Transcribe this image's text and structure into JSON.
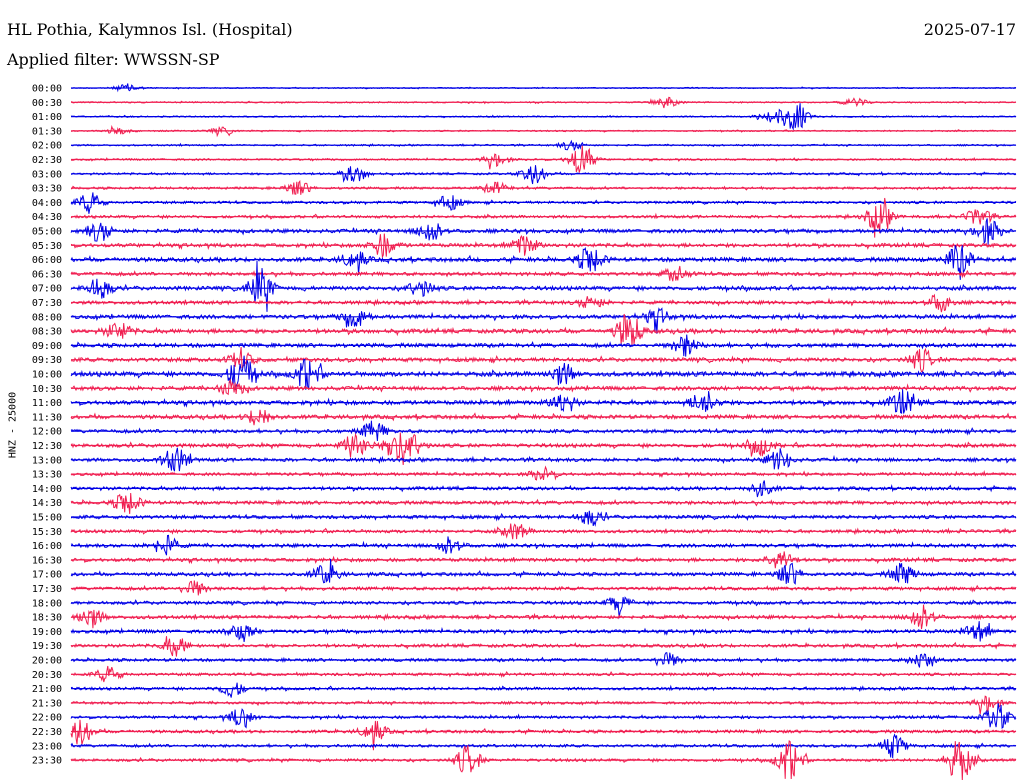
{
  "header": {
    "title": "HL Pothia, Kalymnos Isl. (Hospital)",
    "date": "2025-07-17",
    "filter": "Applied filter: WWSSN-SP"
  },
  "colors": {
    "blue": "#0000e6",
    "red": "#f01e50"
  },
  "chart_data": {
    "type": "line",
    "title": "HL Pothia, Kalymnos Isl. (Hospital)",
    "subtitle": "Applied filter: WWSSN-SP",
    "ylabel": "HNZ - 25000",
    "xlabel": "",
    "grid": false,
    "series_colors_alternate": [
      "#0000e6",
      "#f01e50"
    ],
    "rows": [
      {
        "label": "00:00",
        "level": 0.25,
        "events": [
          [
            0.06,
            0.5
          ]
        ]
      },
      {
        "label": "00:30",
        "level": 0.3,
        "events": [
          [
            0.63,
            0.7
          ],
          [
            0.83,
            0.5
          ]
        ]
      },
      {
        "label": "01:00",
        "level": 0.3,
        "events": [
          [
            0.765,
            2.2
          ],
          [
            0.74,
            0.8
          ]
        ]
      },
      {
        "label": "01:30",
        "level": 0.3,
        "events": [
          [
            0.05,
            0.4
          ],
          [
            0.16,
            0.4
          ]
        ]
      },
      {
        "label": "02:00",
        "level": 0.35,
        "events": [
          [
            0.53,
            0.6
          ]
        ]
      },
      {
        "label": "02:30",
        "level": 0.4,
        "events": [
          [
            0.54,
            2.0
          ],
          [
            0.45,
            0.8
          ]
        ]
      },
      {
        "label": "03:00",
        "level": 0.45,
        "events": [
          [
            0.3,
            1.1
          ],
          [
            0.49,
            1.2
          ]
        ]
      },
      {
        "label": "03:30",
        "level": 0.5,
        "events": [
          [
            0.24,
            0.9
          ],
          [
            0.45,
            0.7
          ]
        ]
      },
      {
        "label": "04:00",
        "level": 0.55,
        "events": [
          [
            0.02,
            1.2
          ],
          [
            0.4,
            0.9
          ]
        ]
      },
      {
        "label": "04:30",
        "level": 0.6,
        "events": [
          [
            0.855,
            2.0
          ],
          [
            0.96,
            1.1
          ]
        ]
      },
      {
        "label": "05:00",
        "level": 0.8,
        "events": [
          [
            0.03,
            1.2
          ],
          [
            0.38,
            1.4
          ],
          [
            0.97,
            1.5
          ]
        ]
      },
      {
        "label": "05:30",
        "level": 0.8,
        "events": [
          [
            0.33,
            1.4
          ],
          [
            0.48,
            1.3
          ]
        ]
      },
      {
        "label": "06:00",
        "level": 0.9,
        "events": [
          [
            0.3,
            1.1
          ],
          [
            0.55,
            1.7
          ],
          [
            0.94,
            1.8
          ]
        ]
      },
      {
        "label": "06:30",
        "level": 0.75,
        "events": [
          [
            0.64,
            0.9
          ]
        ]
      },
      {
        "label": "07:00",
        "level": 0.85,
        "events": [
          [
            0.2,
            2.4
          ],
          [
            0.03,
            1.3
          ],
          [
            0.37,
            1.1
          ]
        ]
      },
      {
        "label": "07:30",
        "level": 0.75,
        "events": [
          [
            0.92,
            1.1
          ],
          [
            0.55,
            0.8
          ]
        ]
      },
      {
        "label": "08:00",
        "level": 0.85,
        "events": [
          [
            0.3,
            1.3
          ],
          [
            0.62,
            1.0
          ]
        ]
      },
      {
        "label": "08:30",
        "level": 0.9,
        "events": [
          [
            0.59,
            2.3
          ],
          [
            0.05,
            1.1
          ]
        ]
      },
      {
        "label": "09:00",
        "level": 0.85,
        "events": [
          [
            0.65,
            1.3
          ]
        ]
      },
      {
        "label": "09:30",
        "level": 0.85,
        "events": [
          [
            0.9,
            1.3
          ],
          [
            0.18,
            1.0
          ]
        ]
      },
      {
        "label": "10:00",
        "level": 1.0,
        "events": [
          [
            0.18,
            2.5
          ],
          [
            0.25,
            2.0
          ],
          [
            0.52,
            1.3
          ]
        ]
      },
      {
        "label": "10:30",
        "level": 0.85,
        "events": [
          [
            0.17,
            1.0
          ]
        ]
      },
      {
        "label": "11:00",
        "level": 0.9,
        "events": [
          [
            0.52,
            1.2
          ],
          [
            0.67,
            1.5
          ],
          [
            0.88,
            1.5
          ]
        ]
      },
      {
        "label": "11:30",
        "level": 0.85,
        "events": [
          [
            0.2,
            1.2
          ]
        ]
      },
      {
        "label": "12:00",
        "level": 0.75,
        "events": [
          [
            0.32,
            1.2
          ]
        ]
      },
      {
        "label": "12:30",
        "level": 0.8,
        "events": [
          [
            0.3,
            1.5
          ],
          [
            0.34,
            1.5
          ],
          [
            0.36,
            1.5
          ],
          [
            0.73,
            1.2
          ]
        ]
      },
      {
        "label": "13:00",
        "level": 0.75,
        "events": [
          [
            0.11,
            1.6
          ],
          [
            0.75,
            1.3
          ]
        ]
      },
      {
        "label": "13:30",
        "level": 0.65,
        "events": [
          [
            0.5,
            0.8
          ]
        ]
      },
      {
        "label": "14:00",
        "level": 0.7,
        "events": [
          [
            0.73,
            1.0
          ]
        ]
      },
      {
        "label": "14:30",
        "level": 0.75,
        "events": [
          [
            0.06,
            1.5
          ]
        ]
      },
      {
        "label": "15:00",
        "level": 0.75,
        "events": [
          [
            0.55,
            1.0
          ]
        ]
      },
      {
        "label": "15:30",
        "level": 0.7,
        "events": [
          [
            0.47,
            1.0
          ]
        ]
      },
      {
        "label": "16:00",
        "level": 0.75,
        "events": [
          [
            0.1,
            1.2
          ],
          [
            0.4,
            1.1
          ]
        ]
      },
      {
        "label": "16:30",
        "level": 0.75,
        "events": [
          [
            0.75,
            1.3
          ]
        ]
      },
      {
        "label": "17:00",
        "level": 0.75,
        "events": [
          [
            0.27,
            1.3
          ],
          [
            0.76,
            1.3
          ],
          [
            0.88,
            1.3
          ]
        ]
      },
      {
        "label": "17:30",
        "level": 0.7,
        "events": [
          [
            0.13,
            1.0
          ]
        ]
      },
      {
        "label": "18:00",
        "level": 0.7,
        "events": [
          [
            0.58,
            1.0
          ]
        ]
      },
      {
        "label": "18:30",
        "level": 0.75,
        "events": [
          [
            0.02,
            1.3
          ],
          [
            0.9,
            1.6
          ]
        ]
      },
      {
        "label": "19:00",
        "level": 0.75,
        "events": [
          [
            0.18,
            1.2
          ],
          [
            0.96,
            1.1
          ]
        ]
      },
      {
        "label": "19:30",
        "level": 0.7,
        "events": [
          [
            0.11,
            1.2
          ]
        ]
      },
      {
        "label": "20:00",
        "level": 0.65,
        "events": [
          [
            0.63,
            1.0
          ],
          [
            0.9,
            1.0
          ]
        ]
      },
      {
        "label": "20:30",
        "level": 0.6,
        "events": [
          [
            0.04,
            0.9
          ]
        ]
      },
      {
        "label": "21:00",
        "level": 0.6,
        "events": [
          [
            0.17,
            1.0
          ]
        ]
      },
      {
        "label": "21:30",
        "level": 0.55,
        "events": [
          [
            0.97,
            1.0
          ]
        ]
      },
      {
        "label": "22:00",
        "level": 0.6,
        "events": [
          [
            0.18,
            1.1
          ],
          [
            0.98,
            1.6
          ]
        ]
      },
      {
        "label": "22:30",
        "level": 0.65,
        "events": [
          [
            0.01,
            1.6
          ],
          [
            0.32,
            1.3
          ]
        ]
      },
      {
        "label": "23:00",
        "level": 0.6,
        "events": [
          [
            0.87,
            1.4
          ]
        ]
      },
      {
        "label": "23:30",
        "level": 0.6,
        "events": [
          [
            0.42,
            1.8
          ],
          [
            0.76,
            2.6
          ],
          [
            0.94,
            2.8
          ]
        ]
      }
    ]
  }
}
